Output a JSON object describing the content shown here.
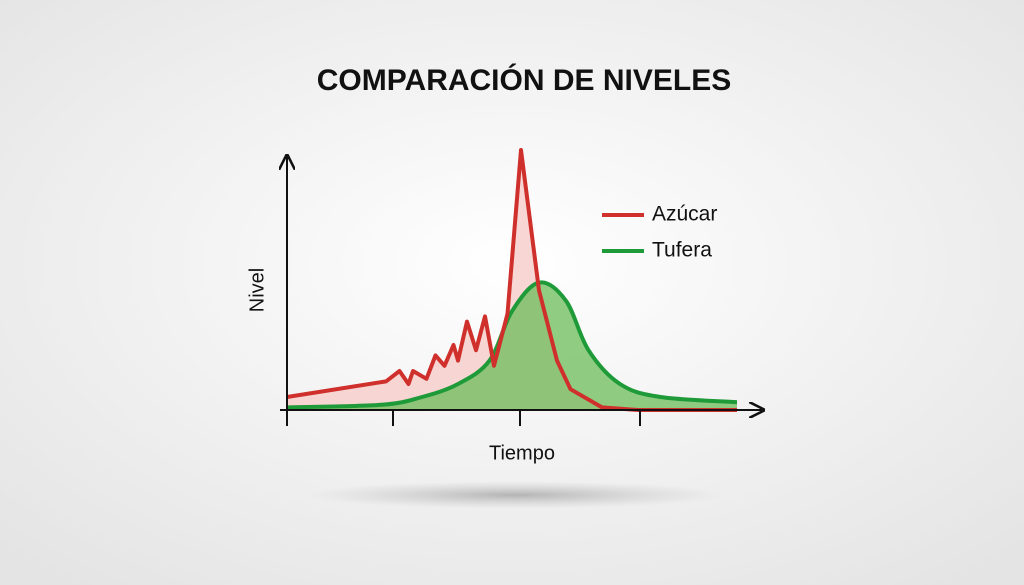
{
  "chart_data": {
    "type": "line",
    "title": "COMPARACIÓN DE NIVELES",
    "x_label": "Tiempo",
    "y_label": "Nivel",
    "xlim": [
      0,
      100
    ],
    "ylim": [
      0,
      100
    ],
    "legend": "upper right",
    "series": [
      {
        "name": "Azúcar",
        "color": "#d0302c",
        "fill": "#f6cfcc",
        "x": [
          0,
          22,
          25,
          27,
          28,
          31,
          33,
          35,
          37,
          38,
          40,
          42,
          44,
          46,
          49,
          52,
          56,
          60,
          63,
          70,
          78,
          100
        ],
        "values": [
          5,
          11,
          15,
          10,
          15,
          12,
          21,
          17,
          25,
          19,
          34,
          23,
          36,
          17,
          37,
          100,
          46,
          19,
          8,
          1,
          0,
          0
        ]
      },
      {
        "name": "Tufera",
        "color": "#1f9a38",
        "fill": "#6cbd5a",
        "x": [
          0,
          21,
          30,
          38,
          45,
          50,
          56,
          62,
          67,
          74,
          83,
          100
        ],
        "values": [
          1,
          2,
          5,
          10,
          19,
          38,
          49,
          42,
          23,
          10,
          5,
          3
        ]
      }
    ]
  }
}
